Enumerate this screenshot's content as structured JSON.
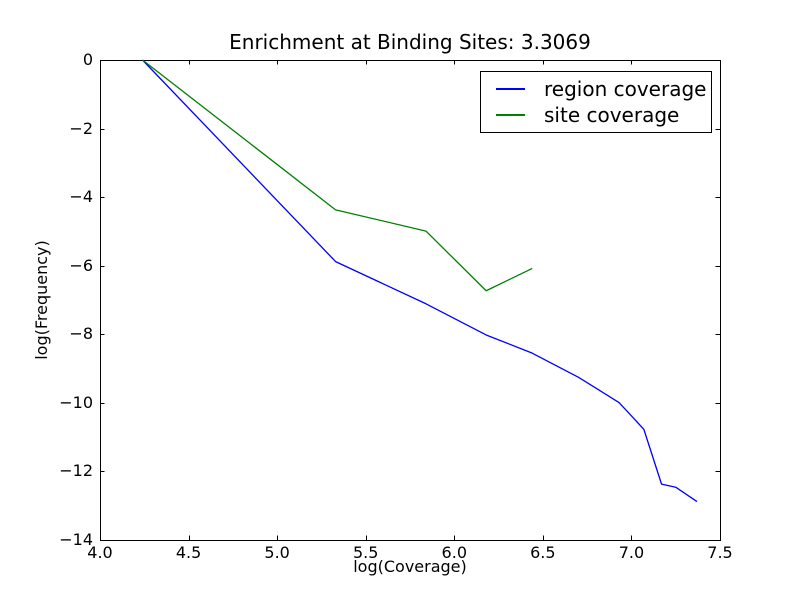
{
  "chart_data": {
    "type": "line",
    "title": "Enrichment at Binding Sites: 3.3069",
    "xlabel": "log(Coverage)",
    "ylabel": "log(Frequency)",
    "xlim": [
      4.0,
      7.5
    ],
    "ylim": [
      -14,
      0
    ],
    "grid": false,
    "frame_color": "#000000",
    "background_color": "#ffffff",
    "tick_direction": "in",
    "legend_position": "upper right",
    "xticks": [
      {
        "value": 4.0,
        "label": "4.0"
      },
      {
        "value": 4.5,
        "label": "4.5"
      },
      {
        "value": 5.0,
        "label": "5.0"
      },
      {
        "value": 5.5,
        "label": "5.5"
      },
      {
        "value": 6.0,
        "label": "6.0"
      },
      {
        "value": 6.5,
        "label": "6.5"
      },
      {
        "value": 7.0,
        "label": "7.0"
      },
      {
        "value": 7.5,
        "label": "7.5"
      }
    ],
    "yticks": [
      {
        "value": 0,
        "label": "0"
      },
      {
        "value": -2,
        "label": "−2"
      },
      {
        "value": -4,
        "label": "−4"
      },
      {
        "value": -6,
        "label": "−6"
      },
      {
        "value": -8,
        "label": "−8"
      },
      {
        "value": -10,
        "label": "−10"
      },
      {
        "value": -12,
        "label": "−12"
      },
      {
        "value": -14,
        "label": "−14"
      }
    ],
    "series": [
      {
        "name": "region coverage",
        "color": "#0000ff",
        "x": [
          4.24,
          5.33,
          5.84,
          6.18,
          6.44,
          6.7,
          6.93,
          7.07,
          7.17,
          7.25,
          7.37
        ],
        "y": [
          0,
          -5.88,
          -7.11,
          -8.02,
          -8.55,
          -9.25,
          -9.99,
          -10.77,
          -12.37,
          -12.46,
          -12.88
        ]
      },
      {
        "name": "site coverage",
        "color": "#008000",
        "x": [
          4.24,
          5.33,
          5.84,
          6.18,
          6.44
        ],
        "y": [
          0,
          -4.37,
          -4.99,
          -6.73,
          -6.08
        ]
      }
    ]
  }
}
